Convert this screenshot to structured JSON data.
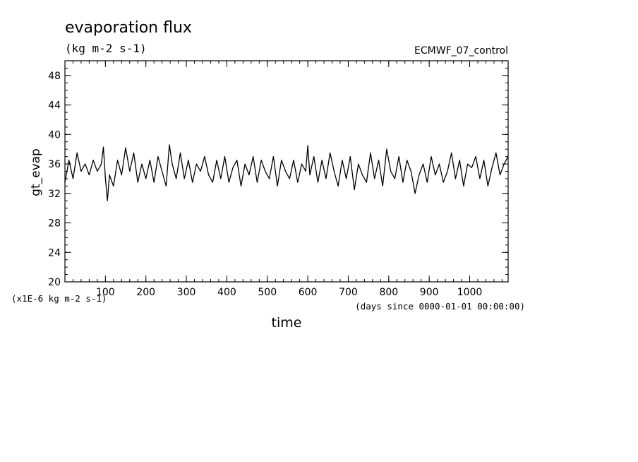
{
  "chart_data": {
    "type": "line",
    "title": "evaporation flux",
    "subtitle": "(kg m-2 s-1)",
    "source_label": "ECMWF_07_control",
    "xlabel": "time",
    "x_units_note": "(days since 0000-01-01 00:00:00)",
    "ylabel": "gt_evap",
    "y_scale_note": "(x1E-6 kg m-2 s-1)",
    "xlim": [
      0,
      1095
    ],
    "ylim": [
      20,
      50
    ],
    "x_ticks": [
      100,
      200,
      300,
      400,
      500,
      600,
      700,
      800,
      900,
      1000
    ],
    "y_ticks": [
      20,
      24,
      28,
      32,
      36,
      40,
      44,
      48
    ],
    "grid": false,
    "legend": "none",
    "series_color": "#000000",
    "series": [
      {
        "x": [
          0,
          10,
          20,
          30,
          40,
          50,
          60,
          70,
          80,
          90,
          95,
          100,
          105,
          110,
          120,
          130,
          140,
          150,
          160,
          170,
          180,
          190,
          200,
          210,
          220,
          230,
          240,
          250,
          258,
          265,
          275,
          285,
          295,
          305,
          315,
          325,
          335,
          345,
          355,
          365,
          375,
          385,
          395,
          405,
          415,
          425,
          435,
          445,
          455,
          465,
          475,
          485,
          495,
          505,
          515,
          525,
          535,
          545,
          555,
          565,
          575,
          585,
          595,
          600,
          605,
          615,
          625,
          635,
          645,
          655,
          665,
          675,
          685,
          695,
          705,
          715,
          725,
          735,
          745,
          755,
          765,
          775,
          785,
          795,
          805,
          815,
          825,
          835,
          845,
          855,
          865,
          875,
          885,
          895,
          905,
          915,
          925,
          935,
          945,
          955,
          965,
          975,
          985,
          995,
          1005,
          1015,
          1025,
          1035,
          1045,
          1055,
          1065,
          1075,
          1085,
          1095
        ],
        "y": [
          33.5,
          36.5,
          34.0,
          37.5,
          35.0,
          36.0,
          34.5,
          36.5,
          35.0,
          36.0,
          38.3,
          34.0,
          31.0,
          34.5,
          33.0,
          36.5,
          34.5,
          38.2,
          35.0,
          37.5,
          33.5,
          36.0,
          34.0,
          36.5,
          33.5,
          37.0,
          35.0,
          33.0,
          38.6,
          36.0,
          34.0,
          37.5,
          34.0,
          36.5,
          33.5,
          36.0,
          35.0,
          37.0,
          34.5,
          33.5,
          36.5,
          34.0,
          37.0,
          33.5,
          35.5,
          36.5,
          33.0,
          36.0,
          34.5,
          37.0,
          33.5,
          36.5,
          35.0,
          34.0,
          37.0,
          33.0,
          36.5,
          35.0,
          34.0,
          36.5,
          33.5,
          36.0,
          35.0,
          38.5,
          34.5,
          37.0,
          33.5,
          36.5,
          34.0,
          37.5,
          35.0,
          33.0,
          36.5,
          34.0,
          37.0,
          32.5,
          36.0,
          34.5,
          33.5,
          37.5,
          34.0,
          36.5,
          33.0,
          38.0,
          35.0,
          34.0,
          37.0,
          33.5,
          36.5,
          35.0,
          32.0,
          34.5,
          36.0,
          33.5,
          37.0,
          34.5,
          36.0,
          33.5,
          35.0,
          37.5,
          34.0,
          36.5,
          33.0,
          36.0,
          35.5,
          37.0,
          34.0,
          36.5,
          33.0,
          35.5,
          37.5,
          34.5,
          36.0,
          37.0
        ]
      }
    ]
  }
}
